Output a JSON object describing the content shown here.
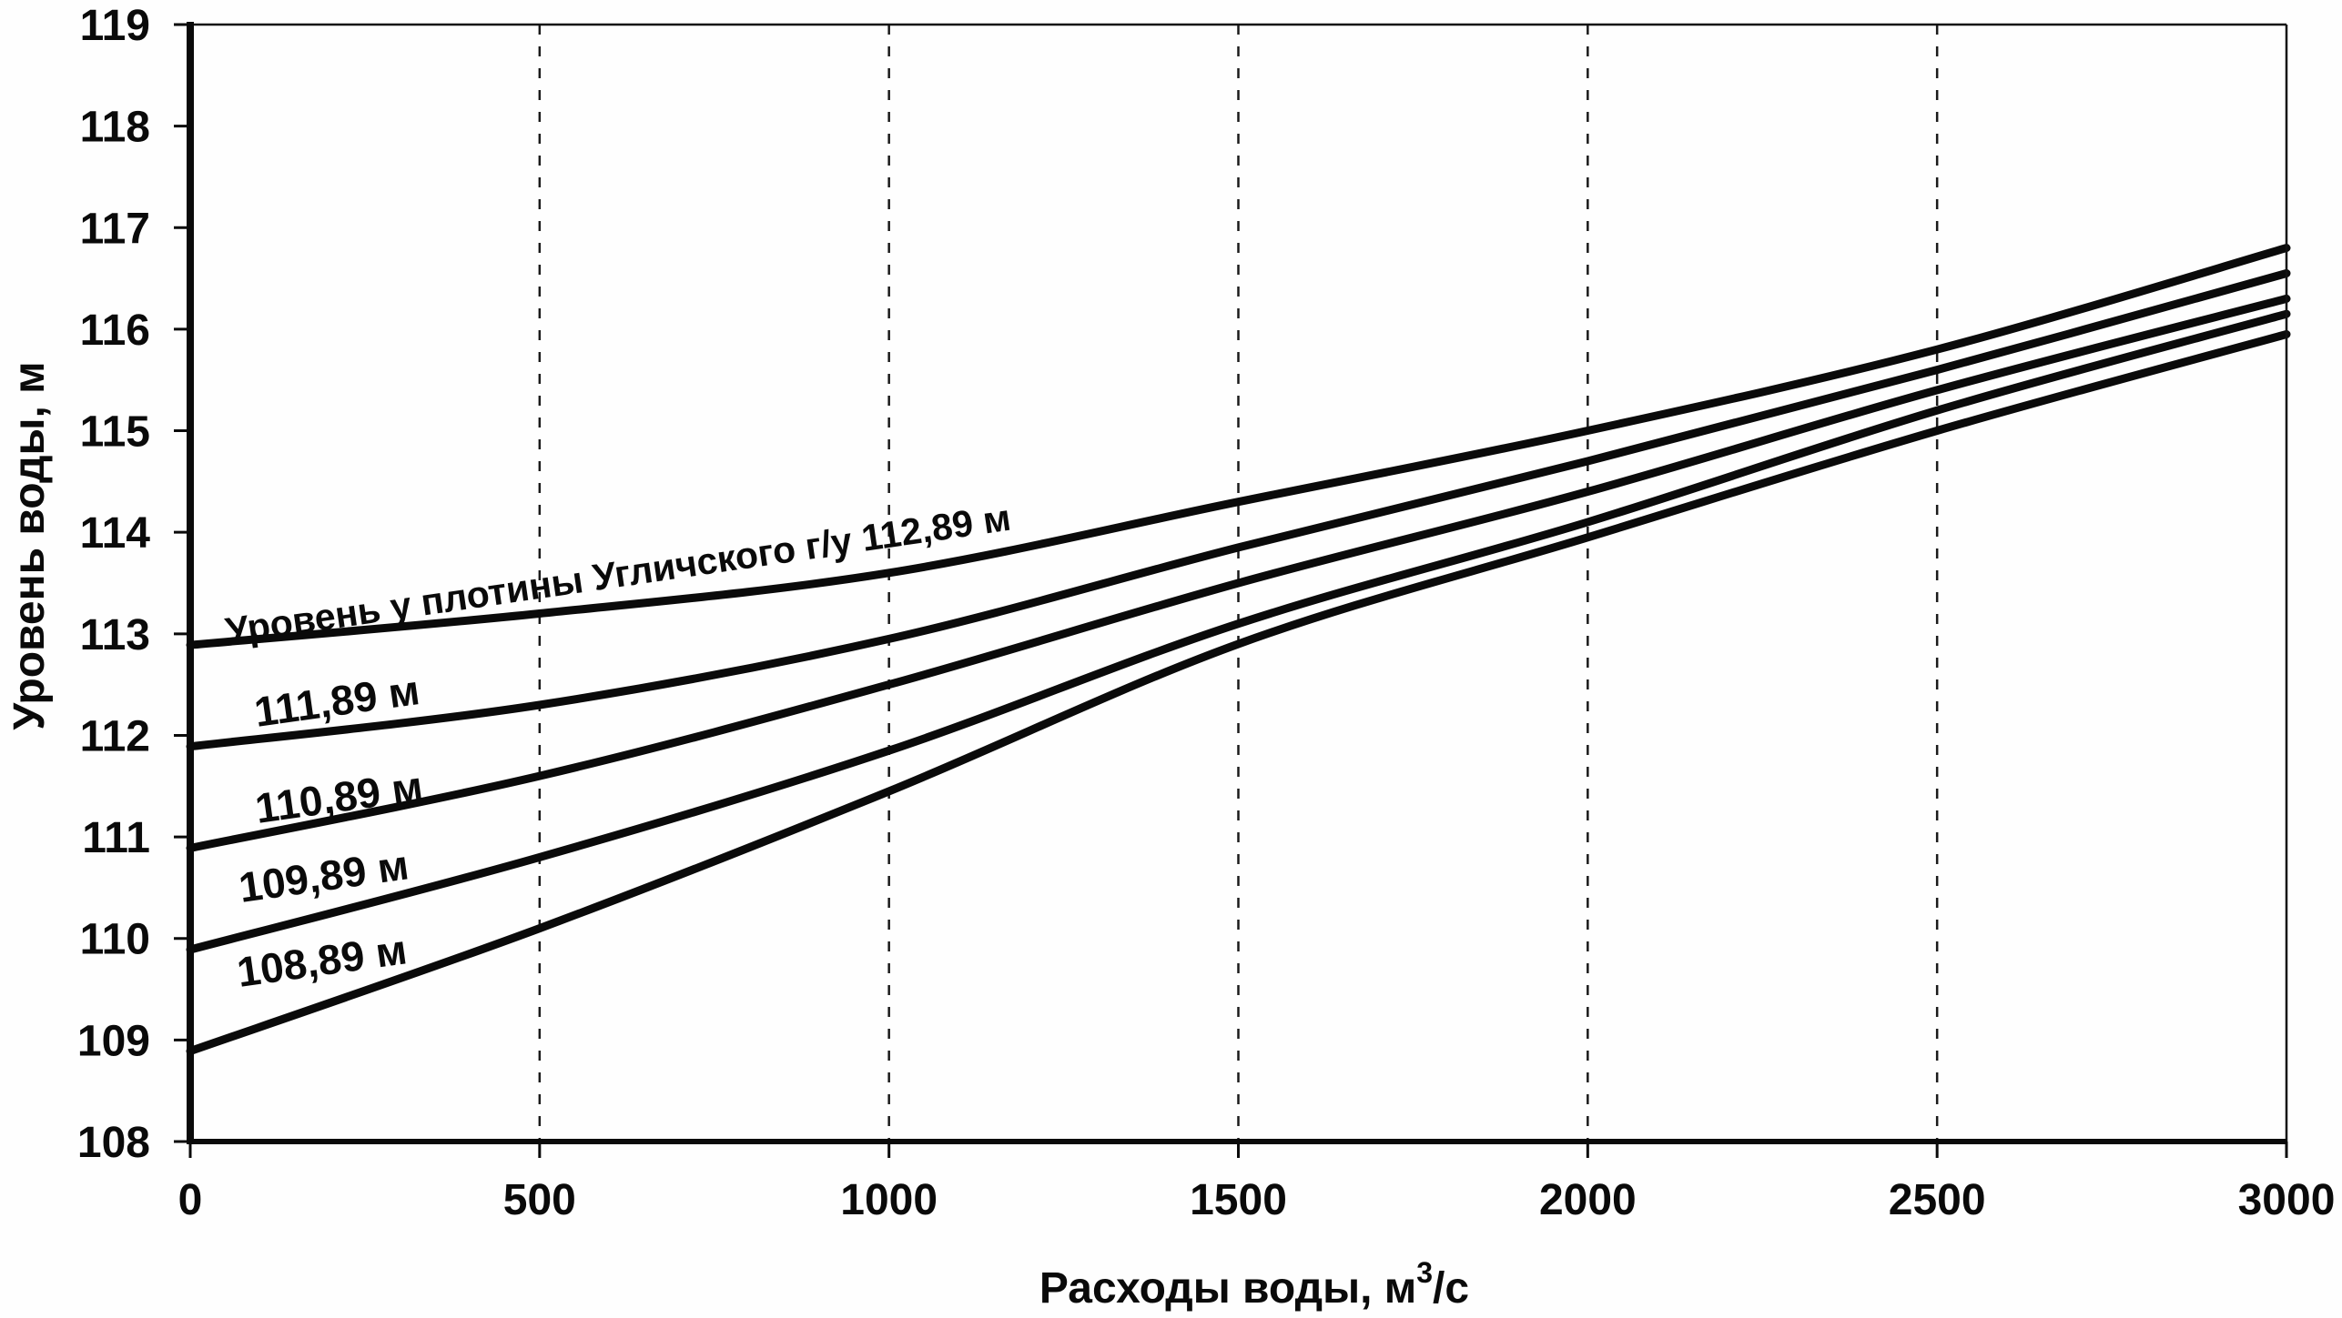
{
  "chart_data": {
    "type": "line",
    "title": "",
    "xlabel": "Расходы воды, м³/с",
    "xlabel_parts": {
      "base": "Расходы воды, м",
      "sup": "3",
      "rest": "/с"
    },
    "ylabel": "Уровень воды, м",
    "xlim": [
      0,
      3000
    ],
    "ylim": [
      108,
      119
    ],
    "x_ticks": [
      0,
      500,
      1000,
      1500,
      2000,
      2500,
      3000
    ],
    "y_ticks": [
      108,
      109,
      110,
      111,
      112,
      113,
      114,
      115,
      116,
      117,
      118,
      119
    ],
    "grid": {
      "style": "vertical-dashed",
      "at_x": [
        500,
        1000,
        1500,
        2000,
        2500
      ]
    },
    "legend_position": "labels-on-curves",
    "x": [
      0,
      500,
      1000,
      1500,
      2000,
      2500,
      3000
    ],
    "series": [
      {
        "label": "Уровень у плотины Угличского г/у 112,89 м",
        "dam_level_m": "112,89",
        "values": [
          112.89,
          113.2,
          113.6,
          114.3,
          115.0,
          115.8,
          116.8
        ]
      },
      {
        "label": "111,89 м",
        "dam_level_m": "111,89",
        "values": [
          111.89,
          112.3,
          112.95,
          113.85,
          114.7,
          115.6,
          116.55
        ]
      },
      {
        "label": "110,89 м",
        "dam_level_m": "110,89",
        "values": [
          110.89,
          111.6,
          112.5,
          113.5,
          114.4,
          115.4,
          116.3
        ]
      },
      {
        "label": "109,89 м",
        "dam_level_m": "109,89",
        "values": [
          109.89,
          110.8,
          111.85,
          113.1,
          114.1,
          115.2,
          116.15
        ]
      },
      {
        "label": "108,89 м",
        "dam_level_m": "108,89",
        "values": [
          108.89,
          110.1,
          111.45,
          112.9,
          113.95,
          115.0,
          115.95
        ]
      }
    ],
    "line_color": "#0a0a0a",
    "background": "#fefefe"
  }
}
